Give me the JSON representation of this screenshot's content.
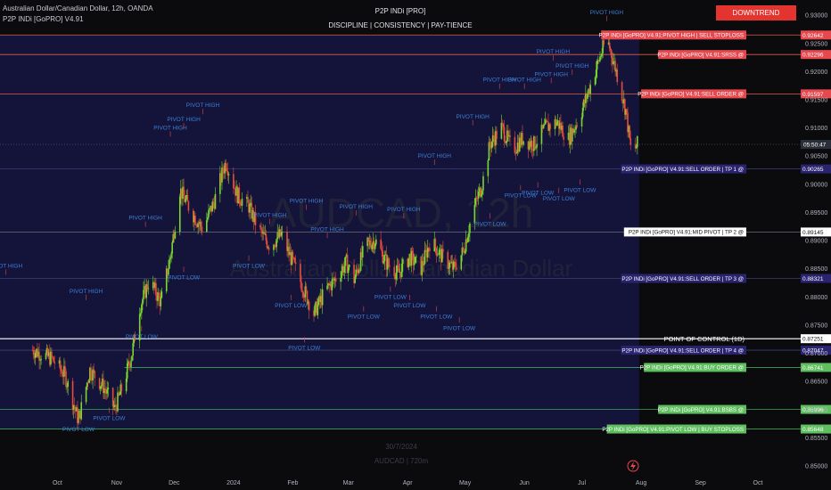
{
  "header": {
    "symbol_line": "Australian Dollar/Canadian Dollar, 12h, OANDA",
    "indicator_line": "P2P INDi [GoPRO] V4.91",
    "center_title": "P2P INDi [PRO]",
    "center_subtitle": "DISCIPLINE  |  CONSISTENCY  |  PAY-TIENCE",
    "trend_badge": "DOWNTREND"
  },
  "watermark": {
    "symbol": "AUDCAD, 12h",
    "name": "Australian Dollar/Canadian Dollar",
    "date": "30/7/2024",
    "sub": "AUDCAD | 720m"
  },
  "colors": {
    "bg": "#0b0b0e",
    "zone": "#14143a",
    "bull": "#7bd62f",
    "bear": "#e74c3c",
    "pivot_text": "#3d7fd6",
    "red_line": "#e45b4b",
    "green_line": "#3aa35a",
    "white_line": "#ffffff"
  },
  "chart_data": {
    "type": "candlestick",
    "instrument": "AUDCAD",
    "timeframe": "12h",
    "x_ticks": [
      "Oct",
      "Nov",
      "Dec",
      "2024",
      "Feb",
      "Mar",
      "Apr",
      "May",
      "Jun",
      "Jul",
      "Aug",
      "Sep",
      "Oct"
    ],
    "y_ticks": [
      "0.93000",
      "0.92500",
      "0.92000",
      "0.91500",
      "0.91000",
      "0.90500",
      "0.90000",
      "0.89500",
      "0.89000",
      "0.88500",
      "0.88000",
      "0.87500",
      "0.87000",
      "0.86500",
      "0.86000",
      "0.85500",
      "0.85000"
    ],
    "ylim": [
      0.8485,
      0.932
    ],
    "current_price_label": "05:50:47",
    "price_path": [
      [
        "2023-09-18",
        0.8705
      ],
      [
        "2023-09-28",
        0.869
      ],
      [
        "2023-10-05",
        0.866
      ],
      [
        "2023-10-12",
        0.858
      ],
      [
        "2023-10-18",
        0.867
      ],
      [
        "2023-10-25",
        0.864
      ],
      [
        "2023-10-31",
        0.86
      ],
      [
        "2023-11-05",
        0.865
      ],
      [
        "2023-11-09",
        0.87
      ],
      [
        "2023-11-13",
        0.878
      ],
      [
        "2023-11-18",
        0.883
      ],
      [
        "2023-11-24",
        0.879
      ],
      [
        "2023-11-29",
        0.887
      ],
      [
        "2023-12-04",
        0.899
      ],
      [
        "2023-12-10",
        0.895
      ],
      [
        "2023-12-16",
        0.892
      ],
      [
        "2023-12-22",
        0.897
      ],
      [
        "2023-12-28",
        0.904
      ],
      [
        "2024-01-03",
        0.898
      ],
      [
        "2024-01-09",
        0.896
      ],
      [
        "2024-01-14",
        0.892
      ],
      [
        "2024-01-20",
        0.889
      ],
      [
        "2024-01-26",
        0.891
      ],
      [
        "2024-02-01",
        0.886
      ],
      [
        "2024-02-07",
        0.881
      ],
      [
        "2024-02-12",
        0.877
      ],
      [
        "2024-02-18",
        0.881
      ],
      [
        "2024-02-23",
        0.883
      ],
      [
        "2024-02-29",
        0.886
      ],
      [
        "2024-03-04",
        0.883
      ],
      [
        "2024-03-10",
        0.889
      ],
      [
        "2024-03-15",
        0.89
      ],
      [
        "2024-03-21",
        0.886
      ],
      [
        "2024-03-27",
        0.884
      ],
      [
        "2024-04-02",
        0.887
      ],
      [
        "2024-04-08",
        0.885
      ],
      [
        "2024-04-13",
        0.89
      ],
      [
        "2024-04-19",
        0.887
      ],
      [
        "2024-04-25",
        0.885
      ],
      [
        "2024-04-30",
        0.888
      ],
      [
        "2024-05-05",
        0.895
      ],
      [
        "2024-05-10",
        0.9
      ],
      [
        "2024-05-14",
        0.907
      ],
      [
        "2024-05-20",
        0.91
      ],
      [
        "2024-05-26",
        0.906
      ],
      [
        "2024-05-31",
        0.908
      ],
      [
        "2024-06-06",
        0.907
      ],
      [
        "2024-06-12",
        0.91
      ],
      [
        "2024-06-18",
        0.911
      ],
      [
        "2024-06-24",
        0.908
      ],
      [
        "2024-06-30",
        0.912
      ],
      [
        "2024-07-06",
        0.918
      ],
      [
        "2024-07-11",
        0.923
      ],
      [
        "2024-07-14",
        0.926
      ],
      [
        "2024-07-19",
        0.92
      ],
      [
        "2024-07-24",
        0.913
      ],
      [
        "2024-07-27",
        0.905
      ],
      [
        "2024-07-30",
        0.907
      ]
    ],
    "pivots": [
      {
        "date": "2023-09-04",
        "price": 0.8845,
        "label": "PIVOT HIGH",
        "type": "high"
      },
      {
        "date": "2023-10-12",
        "price": 0.8575,
        "label": "PIVOT LOW",
        "type": "low"
      },
      {
        "date": "2023-10-16",
        "price": 0.88,
        "label": "PIVOT HIGH",
        "type": "high"
      },
      {
        "date": "2023-10-28",
        "price": 0.8595,
        "label": "PIVOT LOW",
        "type": "low"
      },
      {
        "date": "2023-11-14",
        "price": 0.874,
        "label": "PIVOT LOW",
        "type": "low"
      },
      {
        "date": "2023-11-16",
        "price": 0.893,
        "label": "PIVOT HIGH",
        "type": "high"
      },
      {
        "date": "2023-11-29",
        "price": 0.909,
        "label": "PIVOT HIGH",
        "type": "high"
      },
      {
        "date": "2023-12-06",
        "price": 0.9105,
        "label": "PIVOT HIGH",
        "type": "high"
      },
      {
        "date": "2023-12-06",
        "price": 0.8845,
        "label": "PIVOT LOW",
        "type": "low"
      },
      {
        "date": "2023-12-16",
        "price": 0.913,
        "label": "PIVOT HIGH",
        "type": "high"
      },
      {
        "date": "2024-01-09",
        "price": 0.8865,
        "label": "PIVOT LOW",
        "type": "low"
      },
      {
        "date": "2024-01-20",
        "price": 0.8935,
        "label": "PIVOT HIGH",
        "type": "high"
      },
      {
        "date": "2024-01-31",
        "price": 0.8795,
        "label": "PIVOT LOW",
        "type": "low"
      },
      {
        "date": "2024-02-07",
        "price": 0.872,
        "label": "PIVOT LOW",
        "type": "low"
      },
      {
        "date": "2024-02-08",
        "price": 0.896,
        "label": "PIVOT HIGH",
        "type": "high"
      },
      {
        "date": "2024-02-19",
        "price": 0.891,
        "label": "PIVOT HIGH",
        "type": "high"
      },
      {
        "date": "2024-03-05",
        "price": 0.895,
        "label": "PIVOT HIGH",
        "type": "high"
      },
      {
        "date": "2024-03-09",
        "price": 0.8775,
        "label": "PIVOT LOW",
        "type": "low"
      },
      {
        "date": "2024-03-23",
        "price": 0.881,
        "label": "PIVOT LOW",
        "type": "low"
      },
      {
        "date": "2024-03-30",
        "price": 0.8945,
        "label": "PIVOT HIGH",
        "type": "high"
      },
      {
        "date": "2024-04-02",
        "price": 0.8795,
        "label": "PIVOT LOW",
        "type": "low"
      },
      {
        "date": "2024-04-15",
        "price": 0.904,
        "label": "PIVOT HIGH",
        "type": "high"
      },
      {
        "date": "2024-04-16",
        "price": 0.8775,
        "label": "PIVOT LOW",
        "type": "low"
      },
      {
        "date": "2024-04-28",
        "price": 0.8755,
        "label": "PIVOT LOW",
        "type": "low"
      },
      {
        "date": "2024-05-05",
        "price": 0.911,
        "label": "PIVOT HIGH",
        "type": "high"
      },
      {
        "date": "2024-05-14",
        "price": 0.894,
        "label": "PIVOT LOW",
        "type": "low"
      },
      {
        "date": "2024-05-19",
        "price": 0.9175,
        "label": "PIVOT HIGH",
        "type": "high"
      },
      {
        "date": "2024-05-30",
        "price": 0.899,
        "label": "PIVOT LOW",
        "type": "low"
      },
      {
        "date": "2024-06-01",
        "price": 0.9175,
        "label": "PIVOT HIGH",
        "type": "high"
      },
      {
        "date": "2024-06-08",
        "price": 0.8995,
        "label": "PIVOT LOW",
        "type": "low"
      },
      {
        "date": "2024-06-15",
        "price": 0.9185,
        "label": "PIVOT HIGH",
        "type": "high"
      },
      {
        "date": "2024-06-16",
        "price": 0.9225,
        "label": "PIVOT HIGH",
        "type": "high"
      },
      {
        "date": "2024-06-19",
        "price": 0.8985,
        "label": "PIVOT LOW",
        "type": "low"
      },
      {
        "date": "2024-06-26",
        "price": 0.92,
        "label": "PIVOT HIGH",
        "type": "high"
      },
      {
        "date": "2024-06-30",
        "price": 0.9,
        "label": "PIVOT LOW",
        "type": "low"
      },
      {
        "date": "2024-07-14",
        "price": 0.9295,
        "label": "PIVOT HIGH",
        "type": "high"
      }
    ],
    "levels": [
      {
        "price": 0.92642,
        "label": "P2P INDi [GoPRO] V4.91:PIVOT HIGH | SELL STOPLOSS",
        "price_label": "0.92642",
        "kind": "red",
        "bg": "#e5484d",
        "x_start_date": "2023-09-01"
      },
      {
        "price": 0.92296,
        "label": "P2P INDi [GoPRO] V4.91:SRSS @",
        "price_label": "0.92296",
        "kind": "red",
        "bg": "#e5484d",
        "x_start_date": "2023-09-01"
      },
      {
        "price": 0.91597,
        "label": "P2P INDi [GoPRO] V4.91:SELL ORDER @",
        "price_label": "0.91597",
        "kind": "red",
        "bg": "#e5484d",
        "x_start_date": "2023-09-01"
      },
      {
        "price": 0.90265,
        "label": "P2P INDi [GoPRO] V4.91:SELL ORDER | TP 1 @",
        "price_label": "0.90265",
        "kind": "navy",
        "bg": "#2a2470",
        "x_start_date": "2023-09-01"
      },
      {
        "price": 0.89145,
        "label": "P2P INDi [GoPRO] V4.91:MID PIVOT | TP 2 @",
        "price_label": "0.89145",
        "kind": "white",
        "bg": "#ffffff",
        "x_start_date": "2023-09-01"
      },
      {
        "price": 0.88321,
        "label": "P2P INDi [GoPRO] V4.91:SELL ORDER | TP 3 @",
        "price_label": "0.88321",
        "kind": "navy",
        "bg": "#2a2470",
        "x_start_date": "2023-09-01"
      },
      {
        "price": 0.87251,
        "label": "POINT OF CONTROL (1D)",
        "price_label": "0.87251",
        "kind": "poc",
        "bg": "",
        "x_start_date": "2023-09-01"
      },
      {
        "price": 0.87047,
        "label": "P2P INDi [GoPRO] V4.91:SELL ORDER | TP 4 @",
        "price_label": "0.87047",
        "kind": "navy",
        "bg": "#2a2470",
        "x_start_date": "2023-09-01"
      },
      {
        "price": 0.86741,
        "label": "P2P INDi [GoPRO] V4.91:BUY ORDER @",
        "price_label": "0.86741",
        "kind": "green",
        "bg": "#5fbf5f",
        "x_start_date": "2023-11-05"
      },
      {
        "price": 0.85996,
        "label": "P2P INDi [GoPRO] V4.91:BSBS @",
        "price_label": "0.85996",
        "kind": "green",
        "bg": "#5fbf5f",
        "x_start_date": "2023-09-01"
      },
      {
        "price": 0.85648,
        "label": "P2P INDi [GoPRO] V4.91:PIVOT LOW | BUY STOPLOSS",
        "price_label": "0.85648",
        "kind": "green",
        "bg": "#5fbf5f",
        "x_start_date": "2023-09-01"
      }
    ]
  }
}
